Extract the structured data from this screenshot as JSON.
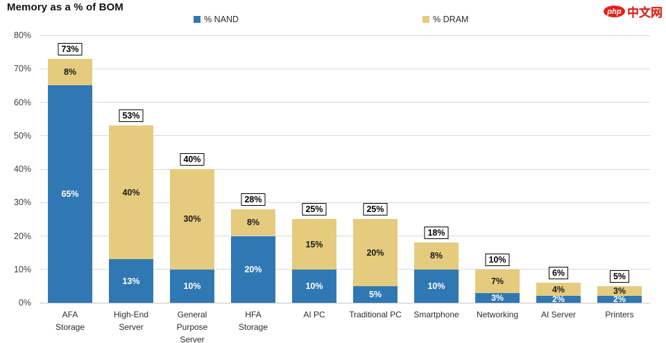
{
  "title": "Memory as a % of BOM",
  "logo": {
    "badge": "php",
    "text": "中文网"
  },
  "legend": [
    {
      "label": "% NAND",
      "color": "#3078b4"
    },
    {
      "label": "% DRAM",
      "color": "#e5cb7e"
    }
  ],
  "chart_data": {
    "type": "bar",
    "stacked": true,
    "title": "Memory as a % of BOM",
    "categories": [
      "AFA\nStorage",
      "High-End\nServer",
      "General\nPurpose\nServer",
      "HFA\nStorage",
      "AI PC",
      "Traditional PC",
      "Smartphone",
      "Networking",
      "AI Server",
      "Printers"
    ],
    "series": [
      {
        "name": "% NAND",
        "color": "#3078b4",
        "label_color": "#ffffff",
        "values": [
          65,
          13,
          10,
          20,
          10,
          5,
          10,
          3,
          2,
          2
        ]
      },
      {
        "name": "% DRAM",
        "color": "#e5cb7e",
        "label_color": "#1a1a1a",
        "values": [
          8,
          40,
          30,
          8,
          15,
          20,
          8,
          7,
          4,
          3
        ]
      }
    ],
    "totals": [
      73,
      53,
      40,
      28,
      25,
      25,
      18,
      10,
      6,
      5
    ],
    "value_suffix": "%",
    "ylim": [
      0,
      80
    ],
    "ytick_step": 10,
    "ytick_suffix": "%",
    "grid": true,
    "legend_position": "top"
  }
}
